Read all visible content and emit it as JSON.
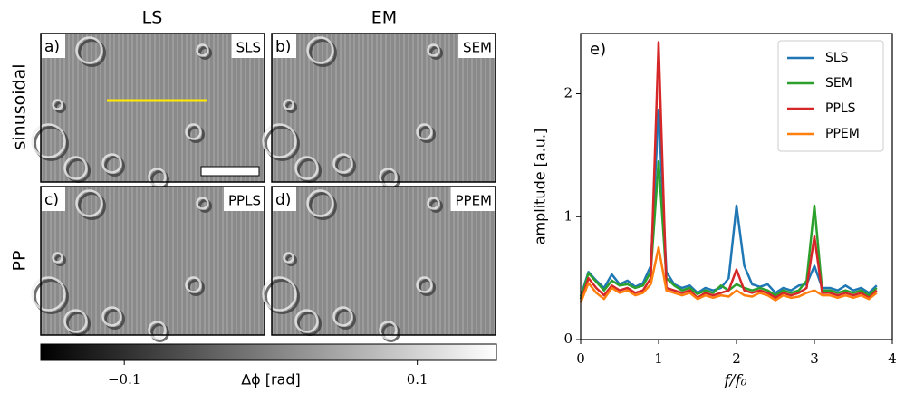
{
  "panels": {
    "column_headers": [
      "LS",
      "EM"
    ],
    "row_labels": [
      "sinusoidal",
      "PP"
    ],
    "items": [
      {
        "label": "a)",
        "tag": "SLS"
      },
      {
        "label": "b)",
        "tag": "SEM"
      },
      {
        "label": "c)",
        "tag": "PPLS"
      },
      {
        "label": "d)",
        "tag": "PPEM"
      }
    ],
    "colorbar": {
      "label": "Δϕ [rad]",
      "lim": [
        -0.157,
        0.154
      ],
      "ticks": [
        {
          "value": -0.1,
          "label": "−0.1"
        },
        0.1
      ]
    }
  },
  "chart_data": {
    "type": "line",
    "title": "e)",
    "ylabel": "amplitude [a.u.]",
    "xlabel": "f/f₀",
    "xlim": [
      0,
      4
    ],
    "ylim": [
      0,
      2.49
    ],
    "xticks": [
      0,
      1,
      2,
      3,
      4
    ],
    "yticks": [
      0,
      1,
      2
    ],
    "legend": "upper right",
    "x": [
      0,
      0.1,
      0.2,
      0.3,
      0.4,
      0.5,
      0.6,
      0.7,
      0.8,
      0.9,
      1.0,
      1.1,
      1.2,
      1.3,
      1.4,
      1.5,
      1.6,
      1.7,
      1.8,
      1.9,
      2.0,
      2.1,
      2.2,
      2.3,
      2.4,
      2.5,
      2.6,
      2.7,
      2.8,
      2.9,
      3.0,
      3.1,
      3.2,
      3.3,
      3.4,
      3.5,
      3.6,
      3.7,
      3.8
    ],
    "series": [
      {
        "name": "SLS",
        "color": "#1f77b4",
        "values": [
          0.35,
          0.55,
          0.48,
          0.42,
          0.53,
          0.45,
          0.48,
          0.43,
          0.46,
          0.6,
          1.87,
          0.55,
          0.45,
          0.42,
          0.44,
          0.38,
          0.42,
          0.4,
          0.42,
          0.5,
          1.09,
          0.6,
          0.45,
          0.43,
          0.45,
          0.38,
          0.42,
          0.4,
          0.44,
          0.45,
          0.6,
          0.42,
          0.42,
          0.4,
          0.44,
          0.4,
          0.42,
          0.38,
          0.44
        ]
      },
      {
        "name": "SEM",
        "color": "#2ca02c",
        "values": [
          0.33,
          0.54,
          0.47,
          0.4,
          0.48,
          0.44,
          0.45,
          0.42,
          0.44,
          0.55,
          1.45,
          0.5,
          0.44,
          0.4,
          0.42,
          0.37,
          0.4,
          0.38,
          0.44,
          0.4,
          0.45,
          0.42,
          0.4,
          0.42,
          0.4,
          0.36,
          0.4,
          0.38,
          0.4,
          0.48,
          1.09,
          0.4,
          0.4,
          0.38,
          0.4,
          0.38,
          0.4,
          0.36,
          0.42
        ]
      },
      {
        "name": "PPLS",
        "color": "#d62728",
        "values": [
          0.3,
          0.5,
          0.42,
          0.36,
          0.44,
          0.4,
          0.42,
          0.38,
          0.4,
          0.5,
          2.42,
          0.42,
          0.4,
          0.38,
          0.4,
          0.34,
          0.38,
          0.36,
          0.38,
          0.4,
          0.57,
          0.4,
          0.38,
          0.4,
          0.38,
          0.34,
          0.38,
          0.36,
          0.38,
          0.42,
          0.84,
          0.38,
          0.38,
          0.36,
          0.38,
          0.36,
          0.38,
          0.34,
          0.4
        ]
      },
      {
        "name": "PPEM",
        "color": "#ff7f0e",
        "values": [
          0.3,
          0.46,
          0.38,
          0.33,
          0.42,
          0.38,
          0.4,
          0.36,
          0.38,
          0.45,
          0.75,
          0.4,
          0.38,
          0.36,
          0.38,
          0.33,
          0.36,
          0.34,
          0.36,
          0.35,
          0.4,
          0.36,
          0.35,
          0.38,
          0.36,
          0.32,
          0.36,
          0.34,
          0.35,
          0.38,
          0.4,
          0.36,
          0.36,
          0.34,
          0.36,
          0.34,
          0.36,
          0.33,
          0.38
        ]
      }
    ]
  }
}
